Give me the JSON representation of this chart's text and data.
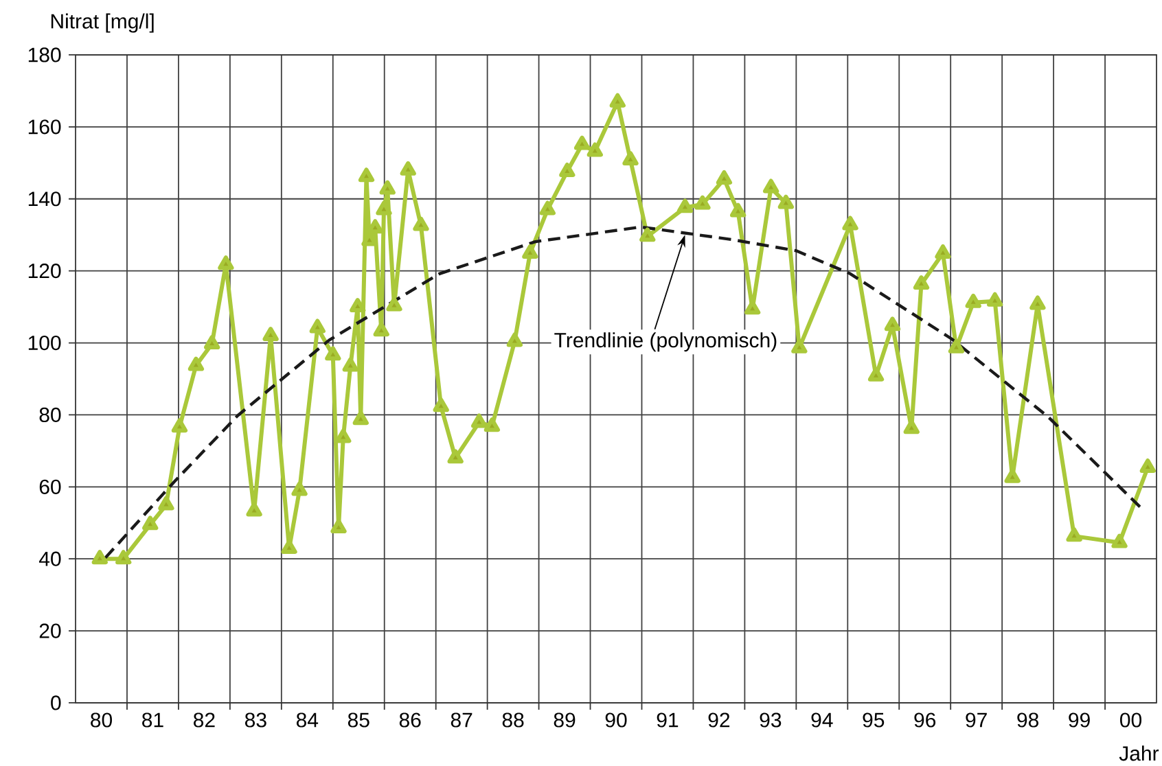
{
  "chart_data": {
    "type": "line",
    "ylabel": "Nitrat [mg/l]",
    "xlabel": "Jahr",
    "xlim": [
      1979.5,
      2000.5
    ],
    "ylim": [
      0,
      180
    ],
    "yticks": [
      0,
      20,
      40,
      60,
      80,
      100,
      120,
      140,
      160,
      180
    ],
    "xticks": [
      {
        "value": 1980.5,
        "label": null
      },
      {
        "value": 1981.5,
        "label": null
      },
      {
        "value": 1982.5,
        "label": null
      },
      {
        "value": 1983.5,
        "label": null
      },
      {
        "value": 1984.5,
        "label": null
      },
      {
        "value": 1985.5,
        "label": null
      },
      {
        "value": 1986.5,
        "label": null
      },
      {
        "value": 1987.5,
        "label": null
      },
      {
        "value": 1988.5,
        "label": null
      },
      {
        "value": 1989.5,
        "label": null
      },
      {
        "value": 1990.5,
        "label": null
      },
      {
        "value": 1991.5,
        "label": null
      },
      {
        "value": 1992.5,
        "label": null
      },
      {
        "value": 1993.5,
        "label": null
      },
      {
        "value": 1994.5,
        "label": null
      },
      {
        "value": 1995.5,
        "label": null
      },
      {
        "value": 1996.5,
        "label": null
      },
      {
        "value": 1997.5,
        "label": null
      },
      {
        "value": 1998.5,
        "label": null
      },
      {
        "value": 1999.5,
        "label": null
      },
      {
        "value": 1980,
        "label": "80"
      },
      {
        "value": 1981,
        "label": "81"
      },
      {
        "value": 1982,
        "label": "82"
      },
      {
        "value": 1983,
        "label": "83"
      },
      {
        "value": 1984,
        "label": "84"
      },
      {
        "value": 1985,
        "label": "85"
      },
      {
        "value": 1986,
        "label": "86"
      },
      {
        "value": 1987,
        "label": "87"
      },
      {
        "value": 1988,
        "label": "88"
      },
      {
        "value": 1989,
        "label": "89"
      },
      {
        "value": 1990,
        "label": "90"
      },
      {
        "value": 1991,
        "label": "91"
      },
      {
        "value": 1992,
        "label": "92"
      },
      {
        "value": 1993,
        "label": "93"
      },
      {
        "value": 1994,
        "label": "94"
      },
      {
        "value": 1995,
        "label": "95"
      },
      {
        "value": 1996,
        "label": "96"
      },
      {
        "value": 1997,
        "label": "97"
      },
      {
        "value": 1998,
        "label": "98"
      },
      {
        "value": 1999,
        "label": "99"
      },
      {
        "value": 2000,
        "label": "00"
      }
    ],
    "grid": true,
    "series": [
      {
        "color": "#aac83a",
        "marker": "triangle",
        "line_style": "solid",
        "x": [
          1979.97,
          1980.43,
          1980.95,
          1981.26,
          1981.52,
          1981.84,
          1982.15,
          1982.42,
          1982.97,
          1983.29,
          1983.65,
          1983.85,
          1984.2,
          1984.5,
          1984.61,
          1984.7,
          1984.84,
          1984.98,
          1985.04,
          1985.15,
          1985.21,
          1985.32,
          1985.44,
          1985.49,
          1985.56,
          1985.69,
          1985.96,
          1986.21,
          1986.6,
          1986.88,
          1987.34,
          1987.59,
          1988.03,
          1988.33,
          1988.67,
          1989.05,
          1989.34,
          1989.59,
          1990.03,
          1990.28,
          1990.61,
          1991.34,
          1991.68,
          1992.1,
          1992.37,
          1992.65,
          1993.01,
          1993.3,
          1993.56,
          1994.55,
          1995.05,
          1995.37,
          1995.74,
          1995.93,
          1996.35,
          1996.61,
          1996.94,
          1997.36,
          1997.7,
          1998.19,
          1998.9,
          1999.78,
          2000.33
        ],
        "values": [
          40,
          40,
          49.5,
          55,
          76.6,
          93.7,
          99.7,
          121.8,
          53.3,
          102,
          42.9,
          59,
          104.2,
          96.6,
          48.6,
          73.7,
          93.5,
          110,
          78.7,
          146.2,
          128.4,
          131.9,
          103.3,
          137,
          142.7,
          110.3,
          148,
          132.6,
          82.3,
          68,
          77.9,
          76.8,
          100.4,
          124.9,
          137,
          147.6,
          155.1,
          153.2,
          166.9,
          150.8,
          129.6,
          137.6,
          138.5,
          145.5,
          136.4,
          109.4,
          143.1,
          138.7,
          98.6,
          132.8,
          90.8,
          104.8,
          76.2,
          116.3,
          124.9,
          98.6,
          111.2,
          111.6,
          62.6,
          110.7,
          46.3,
          44.5,
          65.4
        ]
      },
      {
        "color": "#1a1a1a",
        "marker": "none",
        "line_style": "dashed",
        "x": [
          1980.08,
          1981.41,
          1982.65,
          1984.43,
          1986.57,
          1988.43,
          1990.48,
          1992.25,
          1993.5,
          1994.55,
          1996.52,
          1998.39,
          2000.26
        ],
        "values": [
          40.3,
          61.3,
          79.8,
          100.8,
          119.2,
          128.1,
          132.2,
          128.7,
          125.6,
          119.2,
          101.1,
          79.5,
          53.3
        ]
      }
    ],
    "annotations": [
      {
        "text": "Trendlinie (polynomisch)",
        "x": 1991.34,
        "y": 130
      }
    ]
  }
}
